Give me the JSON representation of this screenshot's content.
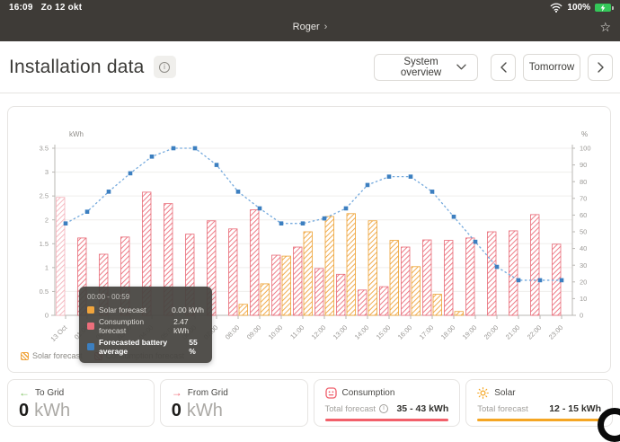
{
  "status_bar": {
    "time": "16:09",
    "date": "Zo 12 okt",
    "battery_percent": "100%"
  },
  "nav_bar": {
    "breadcrumb": "Roger",
    "chevron": "›",
    "star": "☆"
  },
  "header": {
    "title": "Installation data",
    "view_selector": "System overview",
    "date_label": "Tomorrow"
  },
  "colors": {
    "solar": "#f0a43c",
    "solar_stroke": "#eda02f",
    "consumption": "#ec6e7b",
    "consumption_stroke": "#e86976",
    "consumption_selected": "#f4b3bb",
    "battery_line": "#74a9dd",
    "battery_marker": "#3c7fc0",
    "axis": "#b9b7b3",
    "grid": "#efeeec",
    "tick_text": "#9b9996",
    "to_grid_arrow": "#7cc15e",
    "from_grid_arrow": "#ef5e6b",
    "consumption_underline": "#f2606a",
    "solar_underline": "#f5a623"
  },
  "chart_data": {
    "type": "bar",
    "categories": [
      "13 Oct",
      "01:00",
      "02:00",
      "03:00",
      "04:00",
      "05:00",
      "06:00",
      "07:00",
      "08:00",
      "09:00",
      "10:00",
      "11:00",
      "12:00",
      "13:00",
      "14:00",
      "15:00",
      "16:00",
      "17:00",
      "18:00",
      "19:00",
      "20:00",
      "21:00",
      "22:00",
      "23:00"
    ],
    "series": [
      {
        "name": "Solar forecast",
        "type": "bar",
        "unit": "kWh",
        "values": [
          0,
          0,
          0,
          0,
          0,
          0,
          0,
          0,
          0.23,
          0.66,
          1.24,
          1.75,
          2.07,
          2.13,
          1.98,
          1.57,
          1.02,
          0.44,
          0.08,
          0,
          0,
          0,
          0,
          0
        ]
      },
      {
        "name": "Consumption forecast",
        "type": "bar",
        "unit": "kWh",
        "values": [
          2.47,
          1.62,
          1.28,
          1.64,
          2.58,
          2.34,
          1.7,
          1.98,
          1.81,
          2.21,
          1.26,
          1.43,
          0.98,
          0.86,
          0.53,
          0.6,
          1.43,
          1.58,
          1.57,
          1.62,
          1.75,
          1.77,
          2.11,
          1.49
        ]
      },
      {
        "name": "Forecasted battery average",
        "type": "line",
        "unit": "%",
        "values": [
          55,
          62,
          74,
          85,
          95,
          100,
          100,
          90,
          74,
          64,
          55,
          55,
          58,
          64,
          78,
          83,
          83,
          74,
          59,
          44,
          29,
          21,
          21,
          21
        ]
      }
    ],
    "selected_index": 0,
    "y_left": {
      "label": "kWh",
      "min": 0,
      "max": 3.5,
      "step": 0.5
    },
    "y_right": {
      "label": "%",
      "min": 0,
      "max": 100,
      "step": 10
    },
    "grid": true,
    "legend_position": "bottom-left"
  },
  "tooltip": {
    "title": "00:00 - 00:59",
    "rows": [
      {
        "label": "Solar forecast",
        "value": "0.00 kWh"
      },
      {
        "label": "Consumption forecast",
        "value": "2.47 kWh"
      },
      {
        "label": "Forecasted battery average",
        "value": "55 %"
      }
    ]
  },
  "legend": {
    "items": [
      {
        "label": "Solar forecast"
      },
      {
        "label": "Consumption forecast"
      }
    ]
  },
  "cards": {
    "to_grid": {
      "label": "To Grid",
      "value": "0",
      "unit": "kWh",
      "arrow": "←"
    },
    "from_grid": {
      "label": "From Grid",
      "value": "0",
      "unit": "kWh",
      "arrow": "→"
    },
    "consumption": {
      "label": "Consumption",
      "row_label": "Total forecast",
      "row_value": "35 - 43 kWh"
    },
    "solar": {
      "label": "Solar",
      "row_label": "Total forecast",
      "row_value": "12 - 15 kWh"
    }
  }
}
